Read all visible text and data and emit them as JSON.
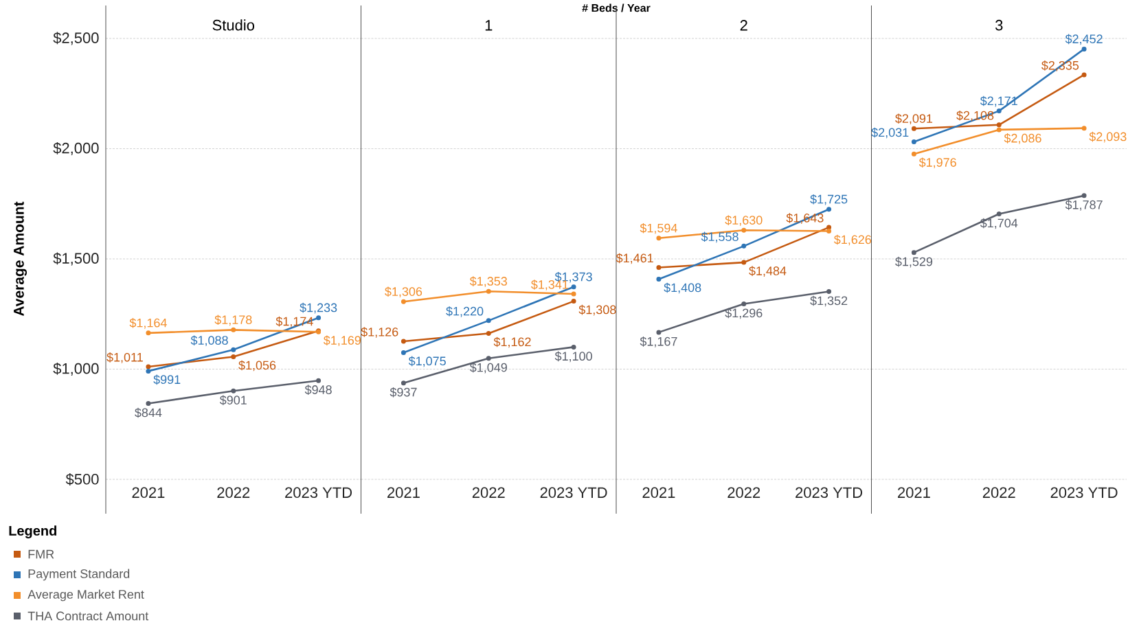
{
  "chart_data": [
    {
      "type": "line",
      "title": "Studio",
      "ylabel": "Average Amount",
      "legend_title": "Legend",
      "legend": "bottom left",
      "annotations": [
        "# Beds / Year"
      ],
      "grid": "y",
      "marker": "circle",
      "categories": [
        "2021",
        "2022",
        "2023 YTD"
      ],
      "ylim": [
        500,
        2500
      ],
      "yticks": [
        {
          "value": 500,
          "label": "$500"
        },
        {
          "value": 1000,
          "label": "$1,000"
        },
        {
          "value": 1500,
          "label": "$1,500"
        },
        {
          "value": 2000,
          "label": "$2,000"
        },
        {
          "value": 2500,
          "label": "$2,500"
        }
      ],
      "series": [
        {
          "name": "FMR",
          "color": "#c55a11",
          "values": [
            1011,
            1056,
            1174
          ],
          "value_labels": [
            "$1,011",
            "$1,056",
            "$1,174"
          ]
        },
        {
          "name": "Payment Standard",
          "color": "#2e75b6",
          "values": [
            991,
            1088,
            1233
          ],
          "value_labels": [
            "$991",
            "$1,088",
            "$1,233"
          ]
        },
        {
          "name": "Average Market Rent",
          "color": "#f28e2b",
          "values": [
            1164,
            1178,
            1169
          ],
          "value_labels": [
            "$1,164",
            "$1,178",
            "$1,169"
          ]
        },
        {
          "name": "THA Contract Amount",
          "color": "#5a5f6b",
          "values": [
            844,
            901,
            948
          ],
          "value_labels": [
            "$844",
            "$901",
            "$948"
          ]
        }
      ]
    },
    {
      "type": "line",
      "title": "1",
      "grid": "y",
      "marker": "circle",
      "tick_labels": "x",
      "categories": [
        "2021",
        "2022",
        "2023 YTD"
      ],
      "ylim": [
        500,
        2500
      ],
      "series": [
        {
          "color": "#c55a11",
          "values": [
            1126,
            1162,
            1308
          ],
          "value_labels": [
            "$1,126",
            "$1,162",
            "$1,308"
          ]
        },
        {
          "color": "#2e75b6",
          "values": [
            1075,
            1220,
            1373
          ],
          "value_labels": [
            "$1,075",
            "$1,220",
            "$1,373"
          ]
        },
        {
          "color": "#f28e2b",
          "values": [
            1306,
            1353,
            1341
          ],
          "value_labels": [
            "$1,306",
            "$1,353",
            "$1,341"
          ]
        },
        {
          "color": "#5a5f6b",
          "values": [
            937,
            1049,
            1100
          ],
          "value_labels": [
            "$937",
            "$1,049",
            "$1,100"
          ]
        }
      ]
    },
    {
      "type": "line",
      "title": "2",
      "grid": "y",
      "marker": "circle",
      "tick_labels": "x",
      "categories": [
        "2021",
        "2022",
        "2023 YTD"
      ],
      "ylim": [
        500,
        2500
      ],
      "series": [
        {
          "color": "#c55a11",
          "values": [
            1461,
            1484,
            1643
          ],
          "value_labels": [
            "$1,461",
            "$1,484",
            "$1,643"
          ]
        },
        {
          "color": "#2e75b6",
          "values": [
            1408,
            1558,
            1725
          ],
          "value_labels": [
            "$1,408",
            "$1,558",
            "$1,725"
          ]
        },
        {
          "color": "#f28e2b",
          "values": [
            1594,
            1630,
            1626
          ],
          "value_labels": [
            "$1,594",
            "$1,630",
            "$1,626"
          ]
        },
        {
          "color": "#5a5f6b",
          "values": [
            1167,
            1296,
            1352
          ],
          "value_labels": [
            "$1,167",
            "$1,296",
            "$1,352"
          ]
        }
      ]
    },
    {
      "type": "line",
      "title": "3",
      "grid": "y",
      "marker": "circle",
      "tick_labels": "x",
      "categories": [
        "2021",
        "2022",
        "2023 YTD"
      ],
      "ylim": [
        500,
        2500
      ],
      "series": [
        {
          "color": "#c55a11",
          "values": [
            2091,
            2108,
            2335
          ],
          "value_labels": [
            "$2,091",
            "$2,108",
            "$2,335"
          ]
        },
        {
          "color": "#2e75b6",
          "values": [
            2031,
            2171,
            2452
          ],
          "value_labels": [
            "$2,031",
            "$2,171",
            "$2,452"
          ]
        },
        {
          "color": "#f28e2b",
          "values": [
            1976,
            2086,
            2093
          ],
          "value_labels": [
            "$1,976",
            "$2,086",
            "$2,093"
          ]
        },
        {
          "color": "#5a5f6b",
          "values": [
            1529,
            1704,
            1787
          ],
          "value_labels": [
            "$1,529",
            "$1,704",
            "$1,787"
          ]
        }
      ]
    }
  ]
}
